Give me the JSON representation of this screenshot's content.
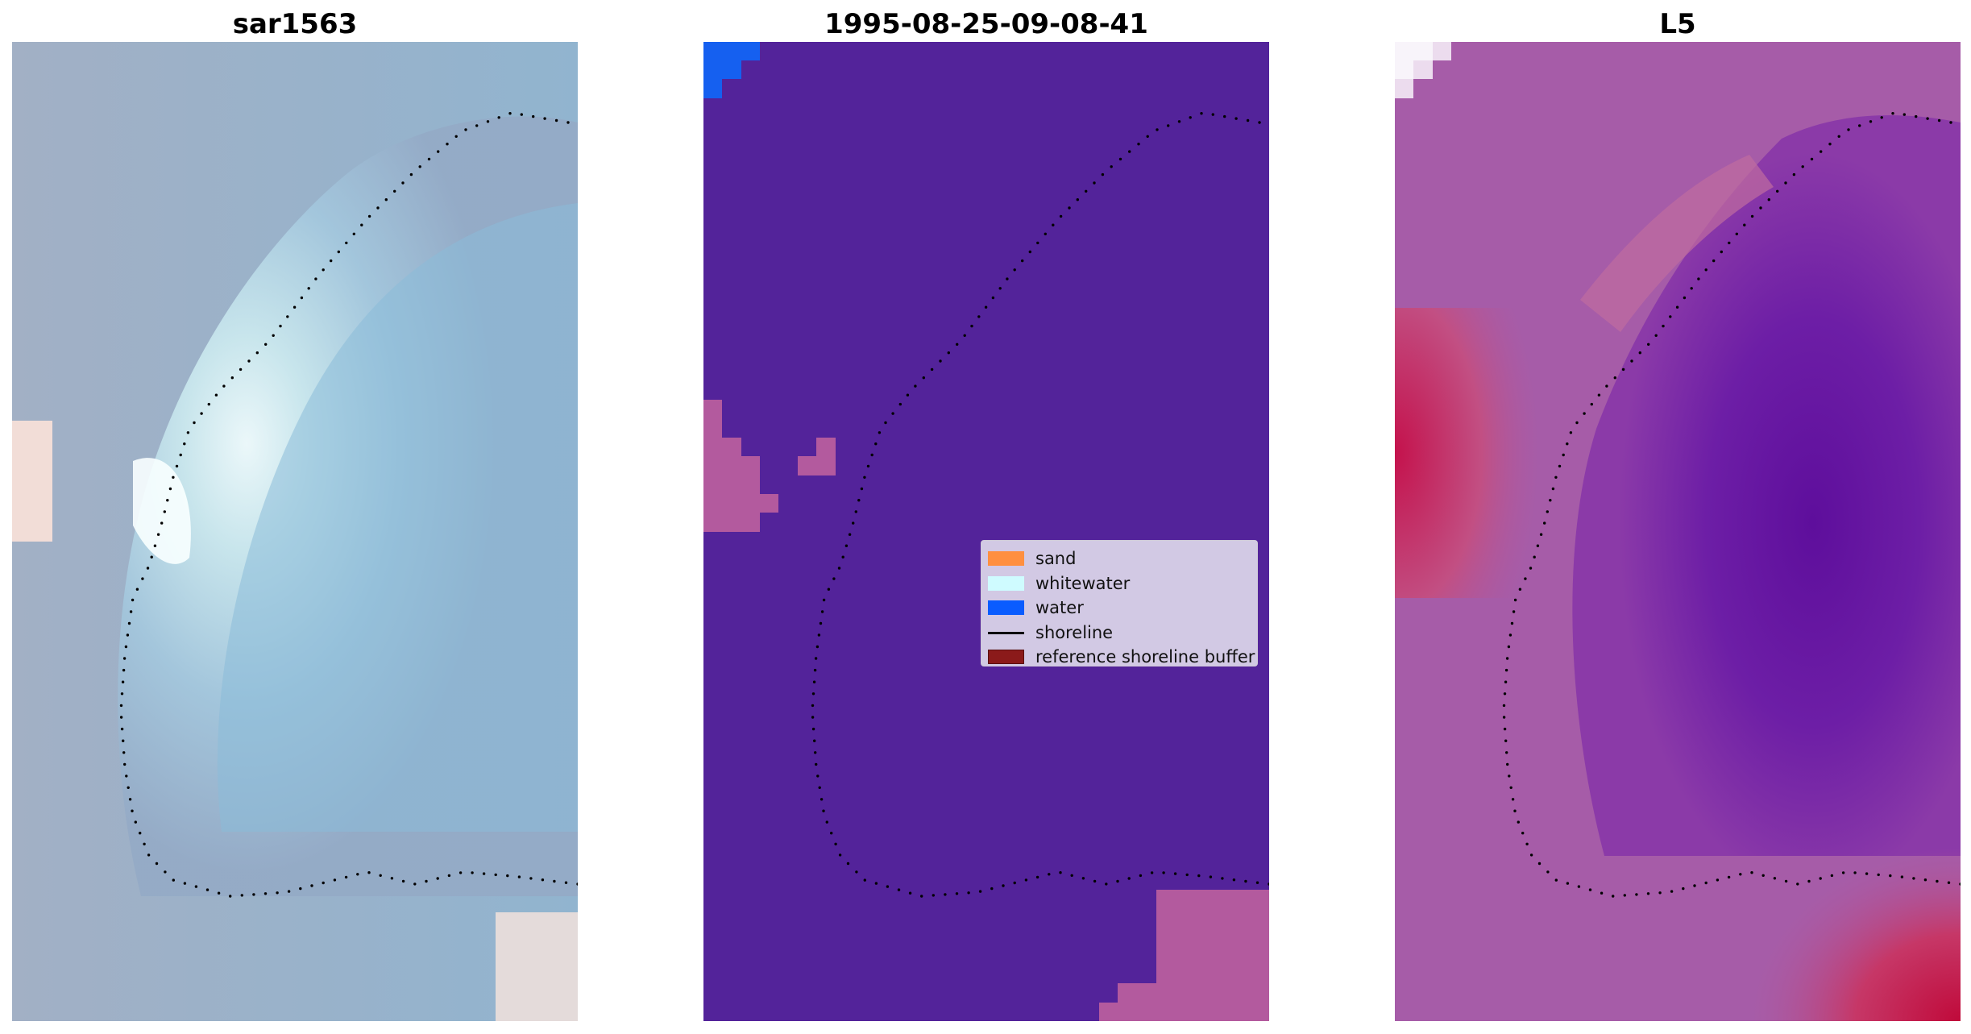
{
  "panels": [
    {
      "title": "sar1563"
    },
    {
      "title": "1995-08-25-09-08-41"
    },
    {
      "title": "L5"
    }
  ],
  "legend": {
    "items": [
      {
        "label": "sand",
        "color": "#ff8f40",
        "kind": "patch"
      },
      {
        "label": "whitewater",
        "color": "#cffbff",
        "kind": "patch"
      },
      {
        "label": "water",
        "color": "#0a5cff",
        "kind": "patch"
      },
      {
        "label": "shoreline",
        "color": "#000000",
        "kind": "line"
      },
      {
        "label": "reference shoreline buffer",
        "color": "#8b1a1a",
        "kind": "patch"
      }
    ]
  },
  "colors": {
    "classified_background": "#53239a",
    "sand_overlay": "#b85ea0",
    "water_overlay": "#1560f0",
    "rgb_base": "#94a8c6",
    "l5_base": "#a65ca8",
    "l5_dark": "#6012a0",
    "l5_hot": "#c6104a"
  }
}
